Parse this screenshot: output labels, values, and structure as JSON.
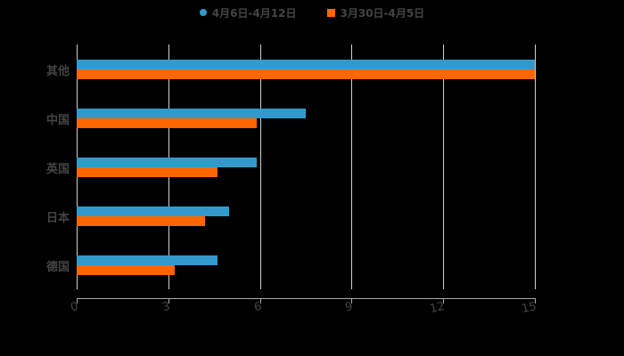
{
  "chart_data": {
    "type": "bar",
    "orientation": "horizontal",
    "title": "",
    "xlabel": "",
    "ylabel": "",
    "categories": [
      "其他",
      "中国",
      "英国",
      "日本",
      "德国"
    ],
    "series": [
      {
        "name": "4月6日-4月12日",
        "color": "#3399cc",
        "marker": "circle",
        "values": [
          15,
          7.5,
          5.9,
          5.0,
          4.6
        ]
      },
      {
        "name": "3月30日-4月5日",
        "color": "#ff6600",
        "marker": "square",
        "values": [
          15,
          5.9,
          4.6,
          4.2,
          3.2
        ]
      }
    ],
    "xlim": [
      0,
      15
    ],
    "xticks": [
      "0",
      "3",
      "6",
      "9",
      "12",
      "15"
    ],
    "grid": true,
    "legend_position": "top"
  },
  "legend": {
    "items": [
      {
        "label": "4月6日-4月12日",
        "color": "#3399cc"
      },
      {
        "label": "3月30日-4月5日",
        "color": "#ff6600"
      }
    ]
  },
  "axis": {
    "ticks": [
      "0",
      "3",
      "6",
      "9",
      "12",
      "15"
    ]
  },
  "categories": [
    "其他",
    "中国",
    "英国",
    "日本",
    "德国"
  ]
}
